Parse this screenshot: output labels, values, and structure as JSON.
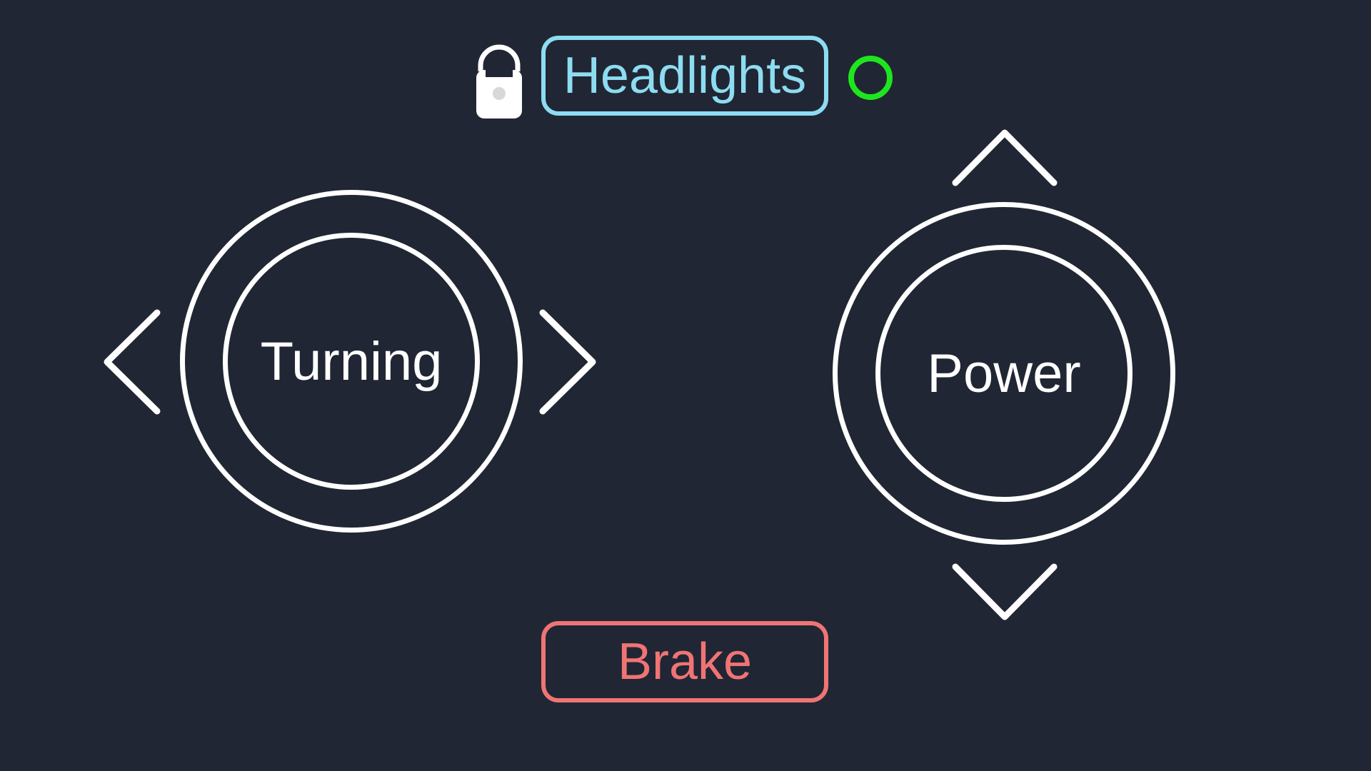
{
  "header": {
    "lock_icon": "lock-icon",
    "headlights_label": "Headlights",
    "status_indicator_color": "#1ee61e",
    "theme_icon": "moon-icon"
  },
  "turning_control": {
    "label": "Turning",
    "left_icon": "chevron-left-icon",
    "right_icon": "chevron-right-icon"
  },
  "power_control": {
    "label": "Power",
    "up_icon": "chevron-up-icon",
    "down_icon": "chevron-down-icon"
  },
  "brake": {
    "label": "Brake"
  },
  "colors": {
    "background": "#212634",
    "headlights_accent": "#8ddcf1",
    "brake_accent": "#f07474",
    "status_on": "#1ee61e",
    "foreground": "#ffffff"
  }
}
